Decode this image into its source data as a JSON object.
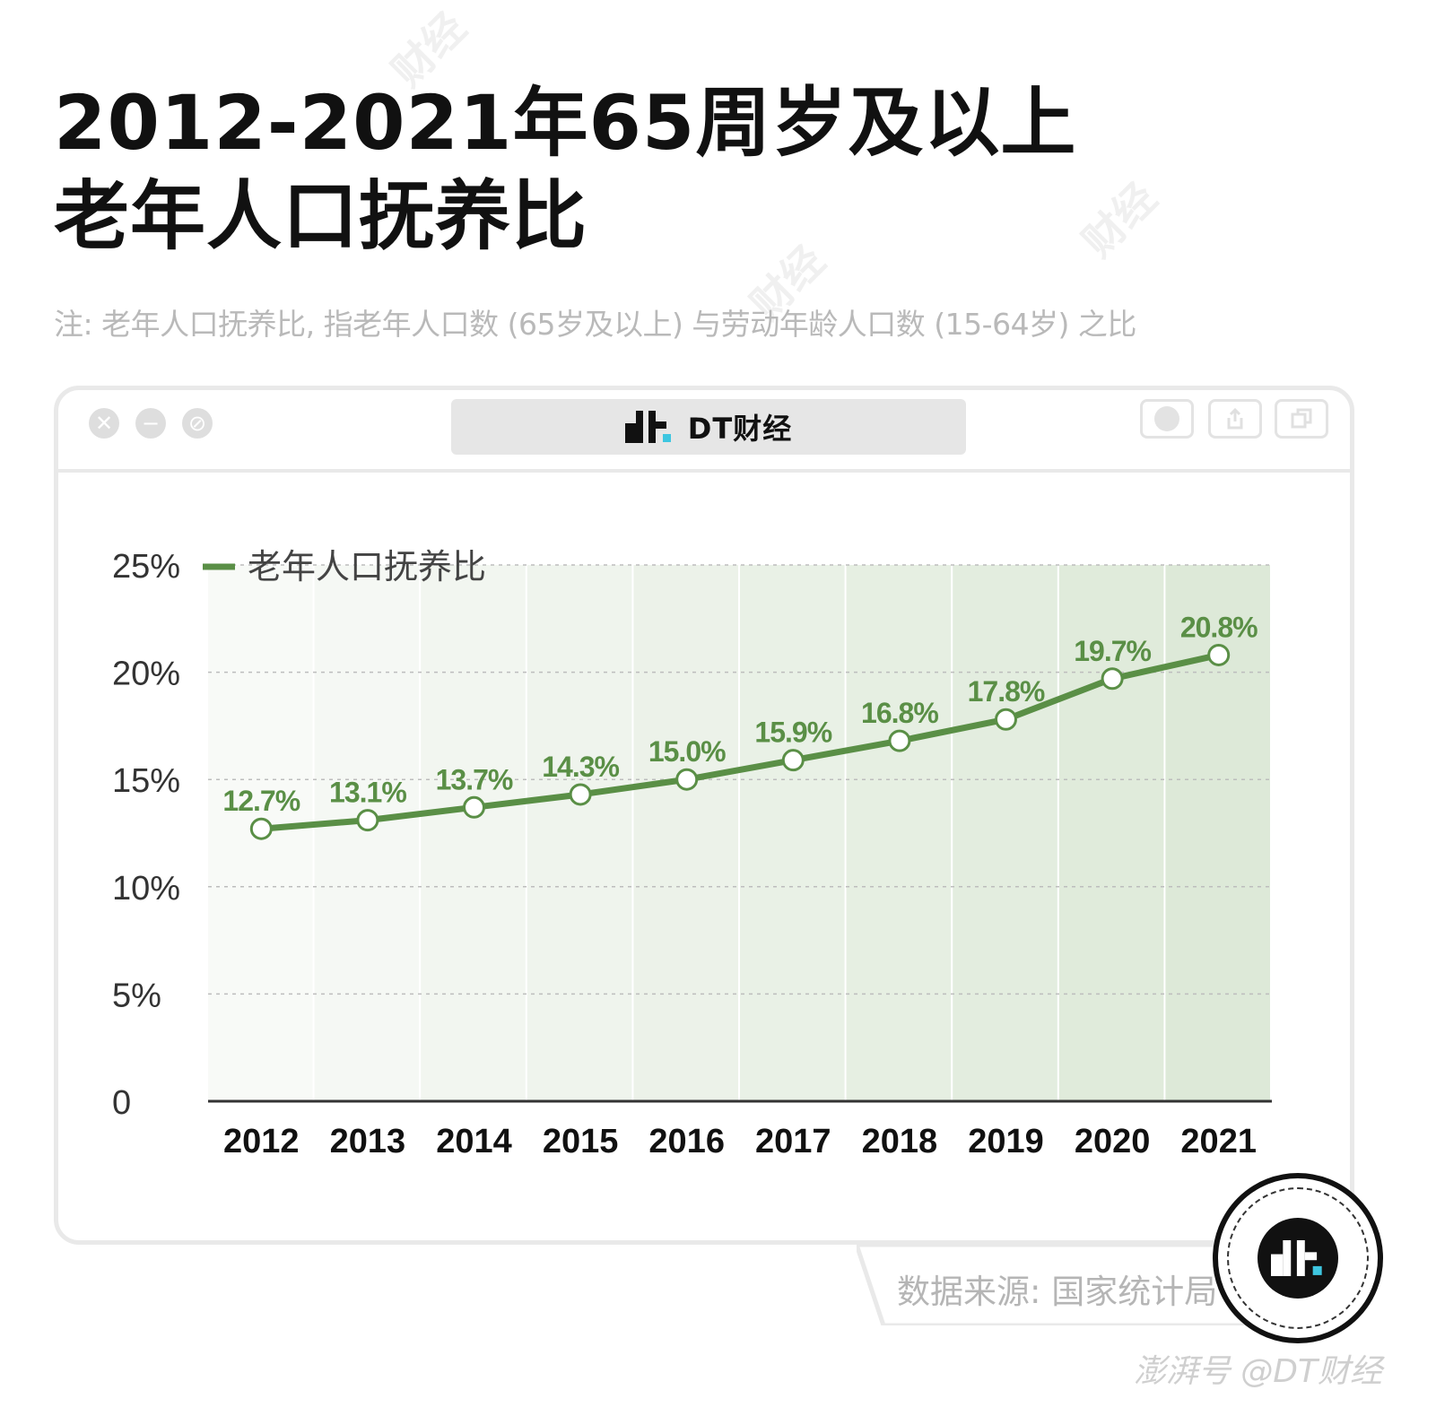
{
  "title": {
    "line1": "2012-2021年65周岁及以上",
    "line2": "老年人口抚养比"
  },
  "note": "注: 老年人口抚养比, 指老年人口数 (65岁及以上) 与劳动年龄人口数 (15-64岁) 之比",
  "window": {
    "brand": "DT财经",
    "logo_icon": "dt-logo-icon",
    "controls": [
      "close-icon",
      "minimize-icon",
      "expand-icon"
    ],
    "tools": [
      "record-icon",
      "share-icon",
      "copy-icon"
    ]
  },
  "source": "数据来源: 国家统计局",
  "watermark": "财经",
  "footer": "澎湃号 @DT财经",
  "colors": {
    "line": "#5a8f46",
    "label": "#5a8f46",
    "bg_start": "#f8faf7",
    "bg_end": "#dde9d8"
  },
  "chart_data": {
    "type": "line",
    "legend": "老年人口抚养比",
    "legend_position": "top-left",
    "categories": [
      "2012",
      "2013",
      "2014",
      "2015",
      "2016",
      "2017",
      "2018",
      "2019",
      "2020",
      "2021"
    ],
    "series": [
      {
        "name": "老年人口抚养比",
        "values": [
          12.7,
          13.1,
          13.7,
          14.3,
          15.0,
          15.9,
          16.8,
          17.8,
          19.7,
          20.8
        ]
      }
    ],
    "value_labels": [
      "12.7%",
      "13.1%",
      "13.7%",
      "14.3%",
      "15.0%",
      "15.9%",
      "16.8%",
      "17.8%",
      "19.7%",
      "20.8%"
    ],
    "yticks": [
      0,
      5,
      10,
      15,
      20,
      25
    ],
    "ytick_labels": [
      "0",
      "5%",
      "10%",
      "15%",
      "20%",
      "25%"
    ],
    "ylim": [
      0,
      25
    ],
    "grid": true
  }
}
